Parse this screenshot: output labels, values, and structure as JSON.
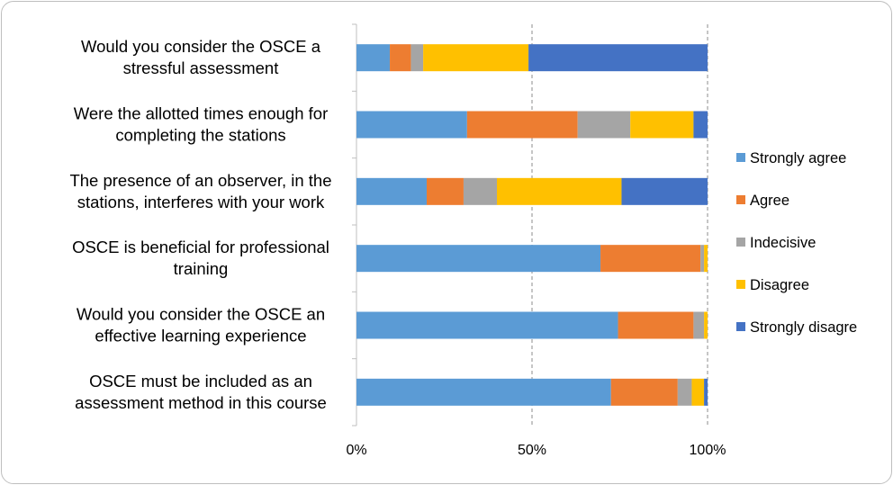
{
  "chart_data": {
    "type": "bar",
    "orientation": "horizontal",
    "stacked": "percent",
    "categories": [
      [
        "Would you consider the OSCE a",
        "stressful assessment"
      ],
      [
        "Were the allotted times enough for",
        "completing the stations"
      ],
      [
        "The presence of an observer, in the",
        "stations, interferes with your work"
      ],
      [
        "OSCE is beneficial for professional",
        "training"
      ],
      [
        "Would you consider the OSCE an",
        "effective learning experience"
      ],
      [
        "OSCE must be included as an",
        "assessment method in this course"
      ]
    ],
    "series": [
      {
        "name": "Strongly agree",
        "color": "#5B9BD5",
        "values": [
          9.5,
          31.5,
          20,
          69.5,
          74.5,
          72.5
        ]
      },
      {
        "name": "Agree",
        "color": "#ED7D31",
        "values": [
          6,
          31.5,
          10.5,
          28.5,
          21.5,
          19
        ]
      },
      {
        "name": "Indecisive",
        "color": "#A5A5A5",
        "values": [
          3.5,
          15,
          9.5,
          1,
          3,
          4
        ]
      },
      {
        "name": "Disagree",
        "color": "#FFC000",
        "values": [
          30,
          18,
          35.5,
          1,
          1,
          3.5
        ]
      },
      {
        "name": "Strongly disagre",
        "color": "#4472C4",
        "values": [
          51,
          4,
          24.5,
          0,
          0,
          1
        ]
      }
    ],
    "xlim": [
      0,
      100
    ],
    "xticks": [
      "0%",
      "50%",
      "100%"
    ],
    "grid": "vertical dashed",
    "legend": "right",
    "title": "",
    "xlabel": "",
    "ylabel": ""
  }
}
